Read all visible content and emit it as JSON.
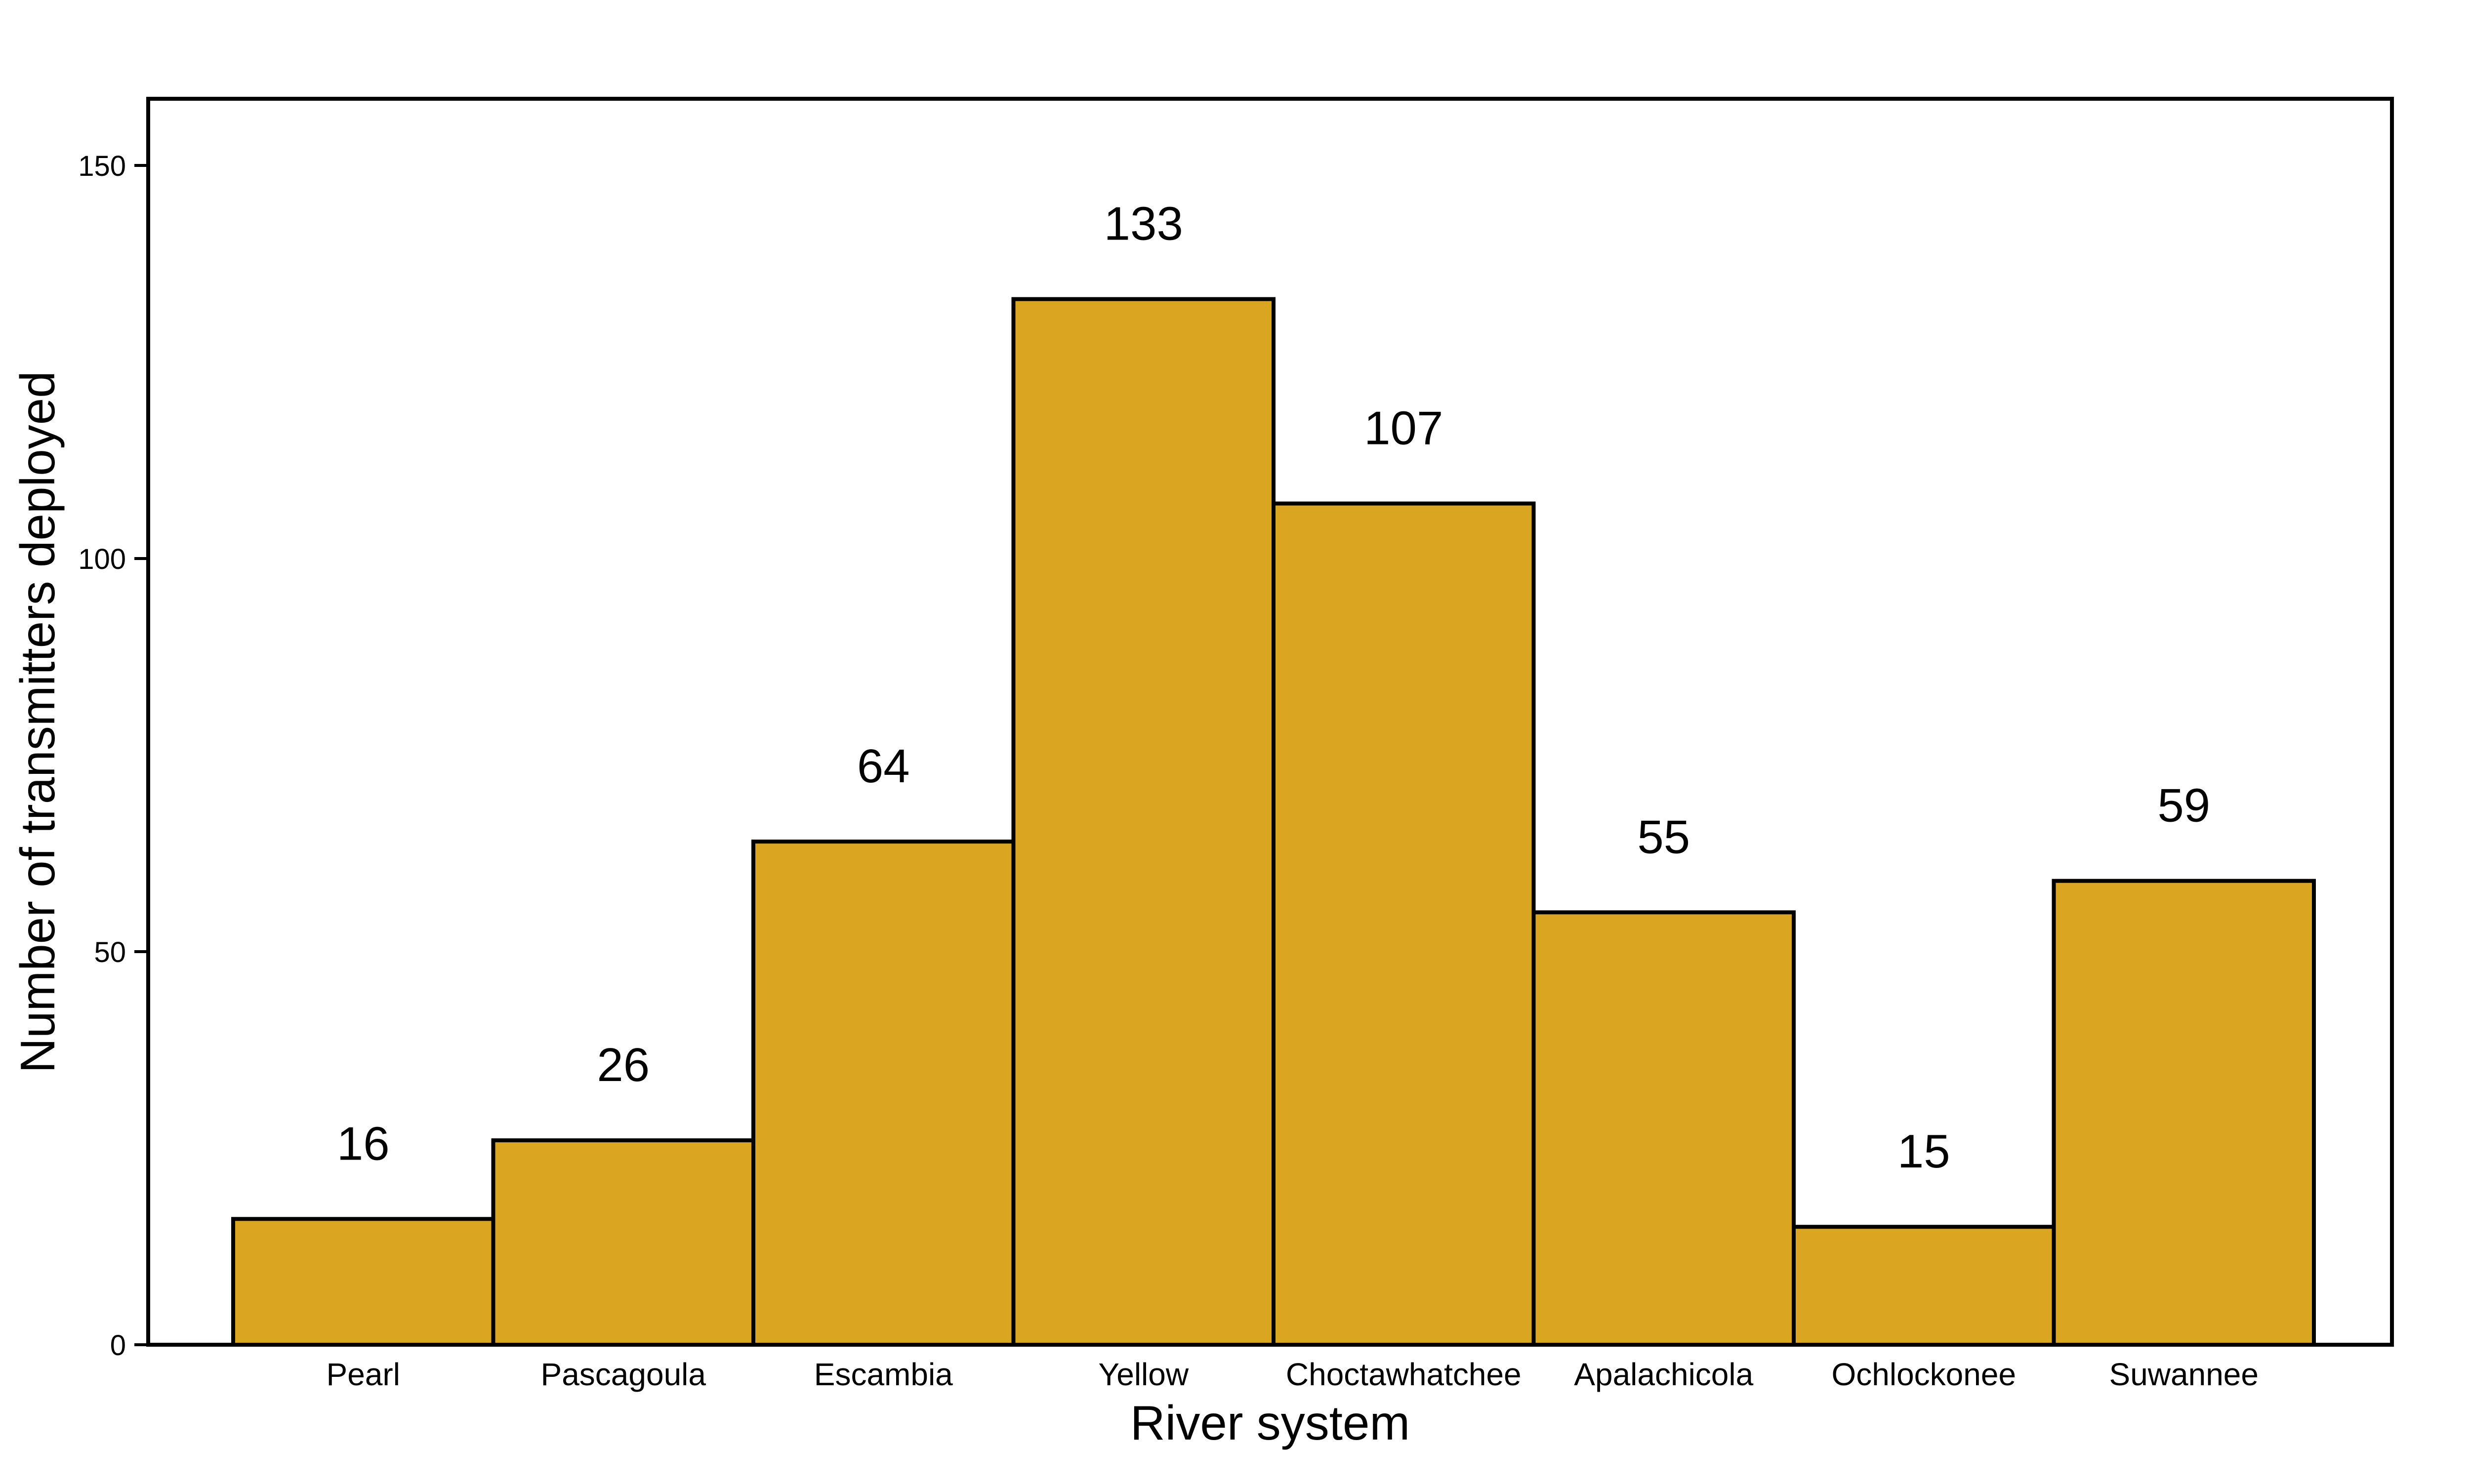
{
  "chart_data": {
    "type": "bar",
    "title": "",
    "xlabel": "River system",
    "ylabel": "Number of transmitters deployed",
    "categories": [
      "Pearl",
      "Pascagoula",
      "Escambia",
      "Yellow",
      "Choctawhatchee",
      "Apalachicola",
      "Ochlockonee",
      "Suwannee"
    ],
    "values": [
      16,
      26,
      64,
      133,
      107,
      55,
      15,
      59
    ],
    "data_labels": [
      "16",
      "26",
      "64",
      "133",
      "107",
      "55",
      "15",
      "59"
    ],
    "ylim": [
      0,
      160
    ],
    "yticks": [
      0,
      50,
      100,
      150
    ],
    "ytick_labels": [
      "0",
      "50",
      "100",
      "150"
    ],
    "grid": false,
    "legend": "none",
    "colors": {
      "bar_fill": "#DAA520",
      "bar_stroke": "#000000",
      "axis": "#000000",
      "background": "#FFFFFF"
    }
  }
}
